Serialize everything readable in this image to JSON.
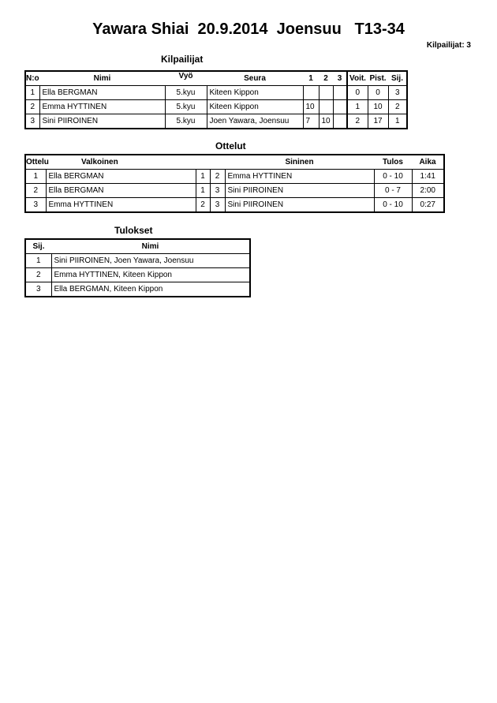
{
  "title": "Yawara Shiai  20.9.2014  Joensuu   T13-34",
  "competitor_count": "Kilpailijat: 3",
  "competitors": {
    "heading": "Kilpailijat",
    "columns": [
      "N:o",
      "Nimi",
      "Vyö",
      "Seura",
      "1",
      "2",
      "3",
      "Voit.",
      "Pist.",
      "Sij."
    ],
    "rows": [
      [
        "1",
        "Ella BERGMAN",
        "5.kyu",
        "Kiteen Kippon",
        "",
        "",
        "",
        "0",
        "0",
        "3"
      ],
      [
        "2",
        "Emma HYTTINEN",
        "5.kyu",
        "Kiteen Kippon",
        "10",
        "",
        "",
        "1",
        "10",
        "2"
      ],
      [
        "3",
        "Sini PIIROINEN",
        "5.kyu",
        "Joen Yawara, Joensuu",
        "7",
        "10",
        "",
        "2",
        "17",
        "1"
      ]
    ]
  },
  "matches": {
    "heading": "Ottelut",
    "columns": [
      "Ottelu",
      "Valkoinen",
      "Sininen",
      "Tulos",
      "Aika"
    ],
    "rows": [
      [
        "1",
        "Ella BERGMAN",
        "1",
        "2",
        "Emma HYTTINEN",
        "0 - 10",
        "1:41"
      ],
      [
        "2",
        "Ella BERGMAN",
        "1",
        "3",
        "Sini PIIROINEN",
        "0 - 7",
        "2:00"
      ],
      [
        "3",
        "Emma HYTTINEN",
        "2",
        "3",
        "Sini PIIROINEN",
        "0 - 10",
        "0:27"
      ]
    ]
  },
  "results": {
    "heading": "Tulokset",
    "columns": [
      "Sij.",
      "Nimi"
    ],
    "rows": [
      [
        "1",
        "Sini PIIROINEN, Joen Yawara, Joensuu"
      ],
      [
        "2",
        "Emma HYTTINEN, Kiteen Kippon"
      ],
      [
        "3",
        "Ella BERGMAN, Kiteen Kippon"
      ]
    ]
  }
}
